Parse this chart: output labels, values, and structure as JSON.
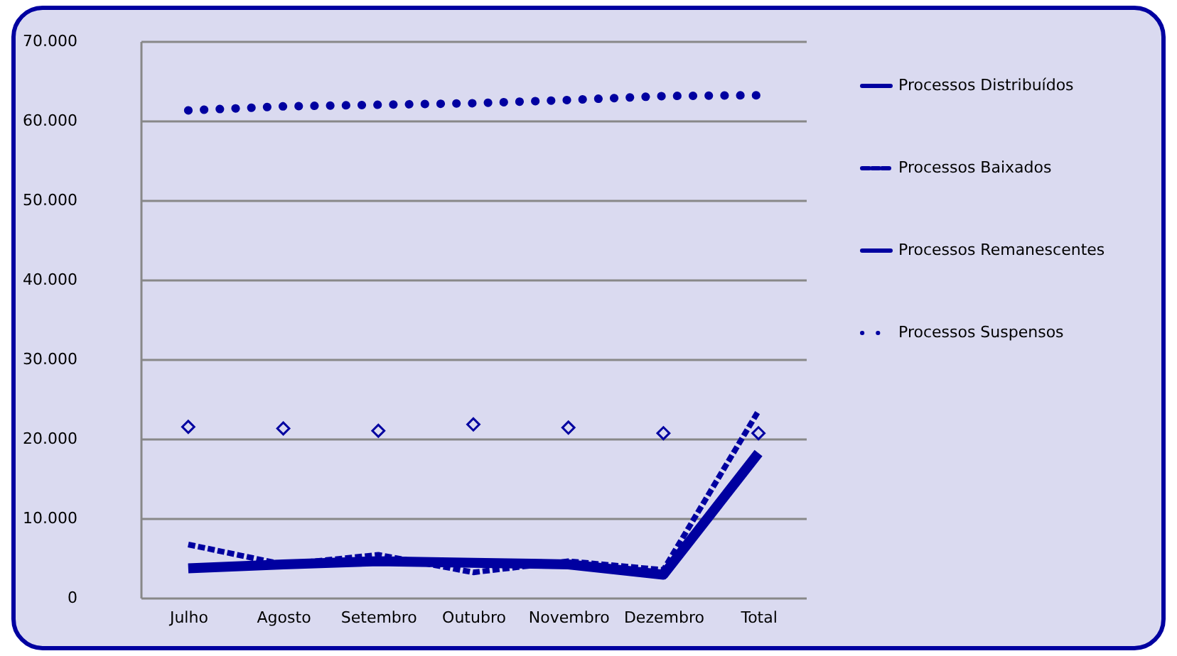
{
  "chart_data": {
    "type": "line",
    "categories": [
      "Julho",
      "Agosto",
      "Setembro",
      "Outubro",
      "Novembro",
      "Dezembro",
      "Total"
    ],
    "series": [
      {
        "name": "Processos Distribuídos",
        "color": "#0000a0",
        "line_style": "solid",
        "values": [
          3700,
          4200,
          4600,
          4400,
          4200,
          2900,
          18200
        ]
      },
      {
        "name": "Processos Baixados",
        "color": "#0000a0",
        "line_style": "dashed",
        "values": [
          6700,
          4200,
          5400,
          3200,
          4600,
          3500,
          23500
        ]
      },
      {
        "name": "Processos Remanescentes",
        "color": "#0000a0",
        "type": "scatter",
        "marker": "diamond",
        "values": [
          21500,
          21300,
          21000,
          21800,
          21400,
          20700,
          20700
        ]
      },
      {
        "name": "Processos Suspensos",
        "color": "#0000a0",
        "line_style": "dotted",
        "values": [
          61300,
          61800,
          62000,
          62200,
          62600,
          63100,
          63200
        ]
      }
    ],
    "ylim": [
      0,
      70000
    ],
    "yticks": [
      {
        "value": 0,
        "label": "0"
      },
      {
        "value": 10000,
        "label": "10.000"
      },
      {
        "value": 20000,
        "label": "20.000"
      },
      {
        "value": 30000,
        "label": "30.000"
      },
      {
        "value": 40000,
        "label": "40.000"
      },
      {
        "value": 50000,
        "label": "50.000"
      },
      {
        "value": 60000,
        "label": "60.000"
      },
      {
        "value": 70000,
        "label": "70.000"
      }
    ],
    "grid": "y",
    "legend": "right"
  }
}
